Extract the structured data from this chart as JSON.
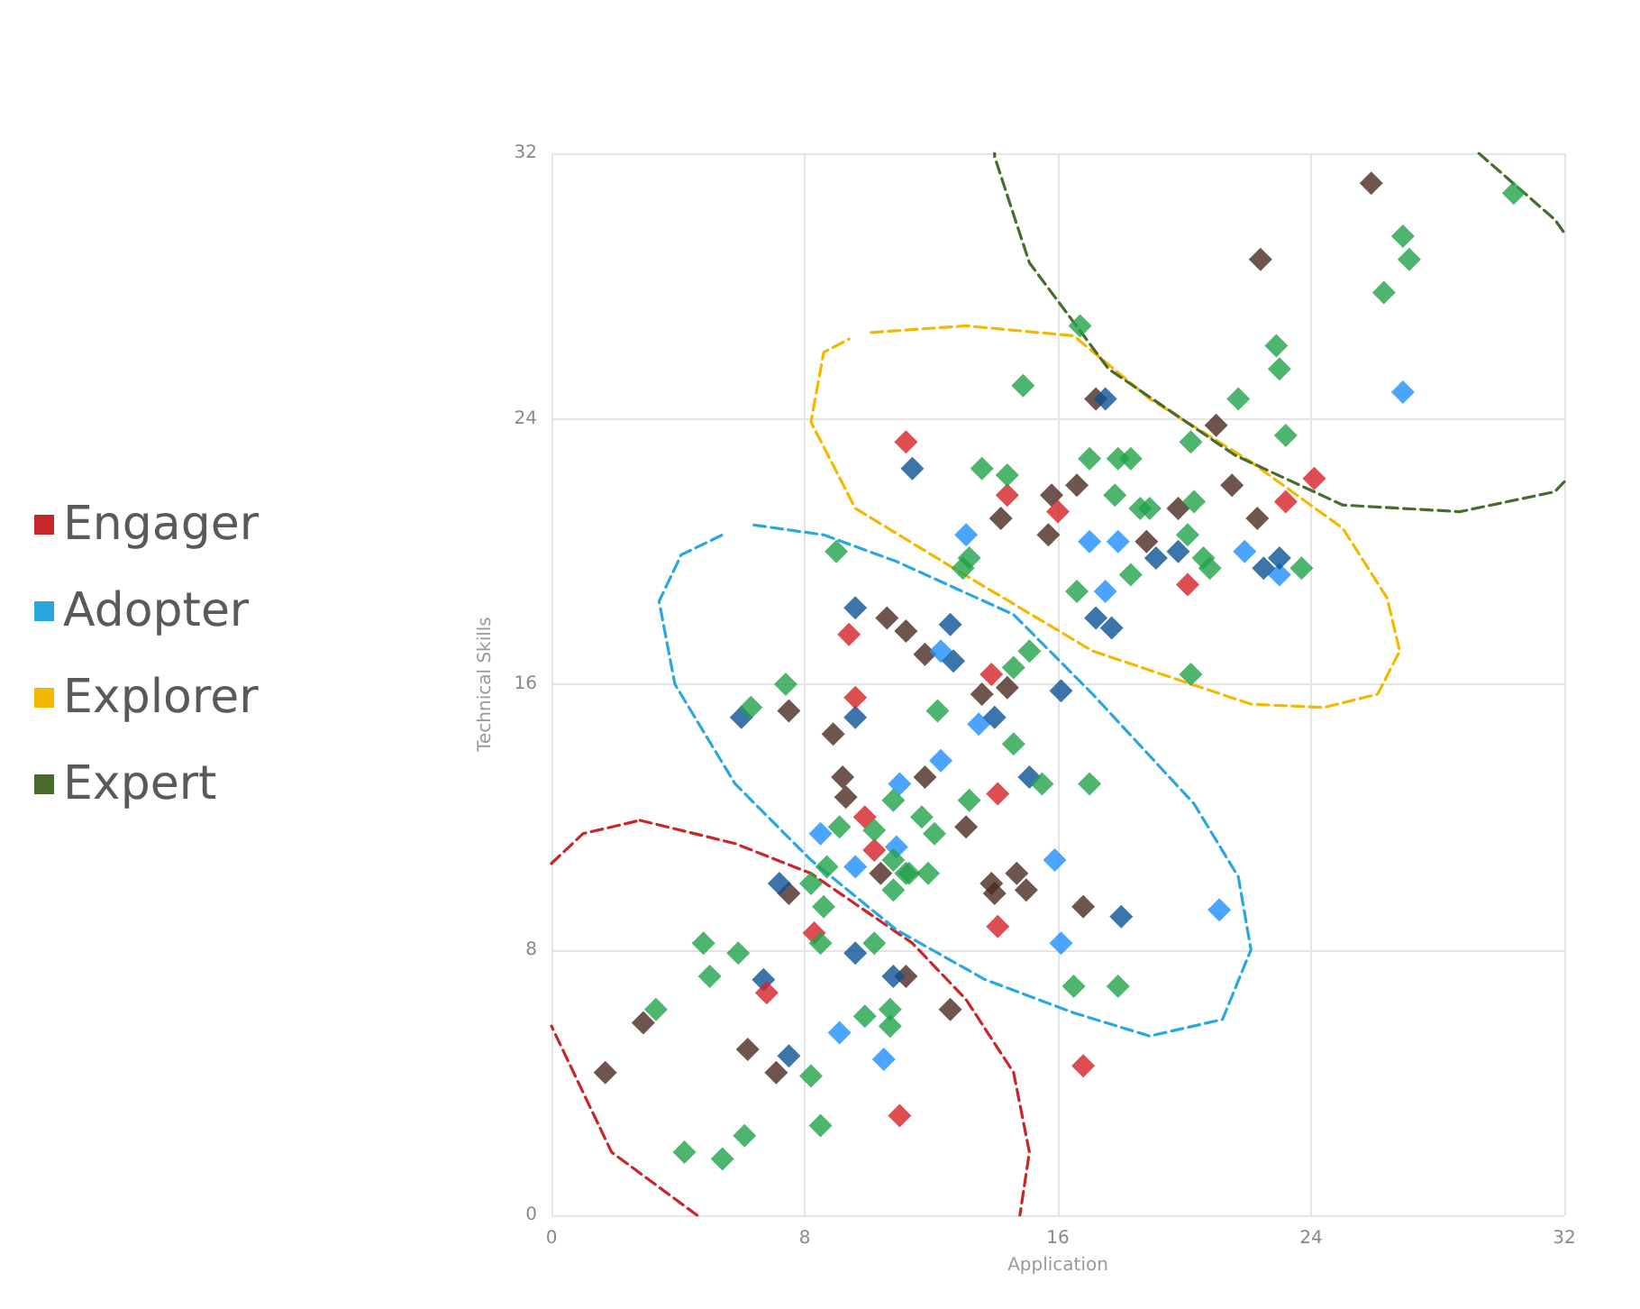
{
  "chart_data": {
    "type": "scatter",
    "xlabel": "Application",
    "ylabel": "Technical Skills",
    "xlim": [
      0,
      32
    ],
    "ylim": [
      0,
      32
    ],
    "xticks": [
      0,
      8,
      16,
      24,
      32
    ],
    "yticks": [
      0,
      8,
      16,
      24,
      32
    ],
    "grid": true,
    "legend": "left",
    "marker": "diamond",
    "series": [
      {
        "color": "#4a2a20",
        "x": [
          1.7,
          2.9,
          6.2,
          7.1,
          7.5,
          8.9,
          9.2,
          9.3,
          10.4,
          11.2,
          7.5,
          13.6,
          14.4,
          11.8,
          13.1,
          13.9,
          14.0,
          14.7,
          15.0,
          16.8,
          12.6,
          22.4,
          17.2,
          21.0,
          15.8,
          16.6,
          14.2,
          15.7,
          18.8,
          19.8,
          21.5,
          22.3,
          11.2,
          11.8,
          25.9,
          10.6
        ],
        "values": [
          4.3,
          5.8,
          5.0,
          4.3,
          9.7,
          14.5,
          13.2,
          12.6,
          10.3,
          7.2,
          15.2,
          15.7,
          15.9,
          13.2,
          11.7,
          10.0,
          9.7,
          10.3,
          9.8,
          9.3,
          6.2,
          28.8,
          24.6,
          23.8,
          21.7,
          22.0,
          21.0,
          20.5,
          20.3,
          21.3,
          22.0,
          21.0,
          17.6,
          16.9,
          31.1,
          18.0
        ]
      },
      {
        "color": "#1e8fff",
        "x": [
          8.5,
          9.6,
          11.0,
          10.9,
          9.1,
          10.5,
          13.5,
          12.3,
          15.9,
          16.1,
          21.1,
          13.1,
          17.0,
          17.9,
          17.5,
          21.9,
          12.3,
          26.9,
          23.0
        ],
        "values": [
          11.5,
          10.5,
          13.0,
          11.1,
          5.5,
          4.7,
          14.8,
          13.7,
          10.7,
          8.2,
          9.2,
          20.5,
          20.3,
          20.3,
          18.8,
          20.0,
          17.0,
          24.8,
          19.3
        ]
      },
      {
        "color": "#0b5394",
        "x": [
          9.6,
          11.4,
          17.5,
          19.1,
          19.8,
          22.5,
          17.2,
          17.7,
          12.6,
          12.7,
          16.1,
          23.0,
          6.0,
          9.6,
          7.2,
          9.6,
          10.8,
          6.7,
          7.5,
          14.0,
          15.1,
          18.0
        ],
        "values": [
          18.3,
          22.5,
          24.6,
          19.8,
          20.0,
          19.5,
          18.0,
          17.7,
          17.8,
          16.7,
          15.8,
          19.8,
          15.0,
          15.0,
          10.0,
          7.9,
          7.2,
          7.1,
          4.8,
          15.0,
          13.2,
          9.0
        ]
      },
      {
        "color": "#d42027",
        "x": [
          11.2,
          9.4,
          9.6,
          14.4,
          16.0,
          20.1,
          13.9,
          24.1,
          23.2,
          9.9,
          10.2,
          8.3,
          6.8,
          11.0,
          14.1,
          14.1,
          16.8
        ],
        "values": [
          23.3,
          17.5,
          15.6,
          21.7,
          21.2,
          19.0,
          16.3,
          22.2,
          21.5,
          12.0,
          11.0,
          8.5,
          6.7,
          3.0,
          12.7,
          8.7,
          4.5
        ]
      },
      {
        "color": "#22a34a",
        "x": [
          9.0,
          7.4,
          16.7,
          14.9,
          21.7,
          20.2,
          13.6,
          14.4,
          17.0,
          17.9,
          18.3,
          17.8,
          18.6,
          18.9,
          20.3,
          20.1,
          20.6,
          20.8,
          18.3,
          16.6,
          13.2,
          13.0,
          15.1,
          14.6,
          20.2,
          30.4,
          26.9,
          27.1,
          26.3,
          22.9,
          23.0,
          23.2,
          23.7,
          6.3,
          9.1,
          10.2,
          10.8,
          10.8,
          10.8,
          11.3,
          8.7,
          8.2,
          8.6,
          8.5,
          10.2,
          4.8,
          5.9,
          5.0,
          3.3,
          9.9,
          10.7,
          10.7,
          8.2,
          8.5,
          6.1,
          4.2,
          5.4,
          12.2,
          14.6,
          15.5,
          17.0,
          13.2,
          11.7,
          12.1,
          11.9,
          11.2,
          16.5,
          17.9
        ],
        "values": [
          20.0,
          16.0,
          26.8,
          25.0,
          24.6,
          23.3,
          22.5,
          22.3,
          22.8,
          22.8,
          22.8,
          21.7,
          21.3,
          21.3,
          21.5,
          20.5,
          19.8,
          19.5,
          19.3,
          18.8,
          19.8,
          19.5,
          17.0,
          16.5,
          16.3,
          30.8,
          29.5,
          28.8,
          27.8,
          26.2,
          25.5,
          23.5,
          19.5,
          15.3,
          11.7,
          11.6,
          12.5,
          10.7,
          9.8,
          10.3,
          10.5,
          10.0,
          9.3,
          8.2,
          8.2,
          8.2,
          7.9,
          7.2,
          6.2,
          6.0,
          6.2,
          5.7,
          4.2,
          2.7,
          2.4,
          1.9,
          1.7,
          15.2,
          14.2,
          13.0,
          13.0,
          12.5,
          12.0,
          11.5,
          10.3,
          10.3,
          6.9,
          6.9
        ]
      },
      {
        "type": "line",
        "name": "Engager",
        "color": "#c9262c",
        "line_style": "dashed",
        "marker": "none",
        "x": [
          2.8,
          5.8,
          8.2,
          11.4,
          13.1,
          14.6,
          15.1,
          14.8,
          null,
          4.6,
          1.9,
          0,
          null,
          0,
          1.0,
          2.8
        ],
        "values": [
          11.9,
          11.2,
          10.3,
          8.2,
          6.5,
          4.3,
          1.9,
          0,
          null,
          0,
          1.9,
          5.7,
          null,
          10.6,
          11.5,
          11.9
        ]
      },
      {
        "type": "line",
        "name": "Adopter",
        "color": "#29a8e0",
        "line_style": "dashed",
        "marker": "none",
        "x": [
          6.4,
          8.6,
          10.9,
          14.6,
          17.1,
          20.3,
          21.7,
          22.1,
          21.2,
          18.9,
          16.5,
          13.7,
          10.9,
          8.2,
          5.8,
          3.9,
          3.4,
          4.1,
          5.4
        ],
        "values": [
          20.8,
          20.5,
          19.7,
          18.1,
          15.7,
          12.4,
          10.2,
          8.0,
          5.9,
          5.4,
          6.1,
          7.1,
          8.6,
          10.7,
          13.0,
          16.0,
          18.5,
          19.9,
          20.5
        ]
      },
      {
        "type": "line",
        "name": "Explorer",
        "color": "#f5b800",
        "line_style": "dashed",
        "marker": "none",
        "x": [
          10.1,
          13.1,
          16.5,
          18.9,
          22.1,
          25.0,
          26.4,
          26.8,
          26.1,
          24.4,
          22.1,
          17.1,
          12.7,
          9.6,
          8.2,
          8.6,
          9.4
        ],
        "values": [
          26.6,
          26.8,
          26.5,
          24.6,
          22.7,
          20.7,
          18.6,
          17.0,
          15.7,
          15.3,
          15.4,
          17.0,
          19.5,
          21.3,
          23.9,
          26.0,
          26.4
        ]
      },
      {
        "type": "line",
        "name": "Expert",
        "color": "#4a6b2e",
        "line_style": "dashed",
        "marker": "none",
        "x": [
          29.3,
          31.7,
          32,
          null,
          32,
          31.7,
          28.7,
          25.0,
          21.6,
          17.6,
          15.1,
          14.0,
          14.0
        ],
        "values": [
          32,
          30.0,
          29.6,
          null,
          22.1,
          21.8,
          21.2,
          21.4,
          22.9,
          25.5,
          28.7,
          31.9,
          32
        ]
      }
    ]
  }
}
